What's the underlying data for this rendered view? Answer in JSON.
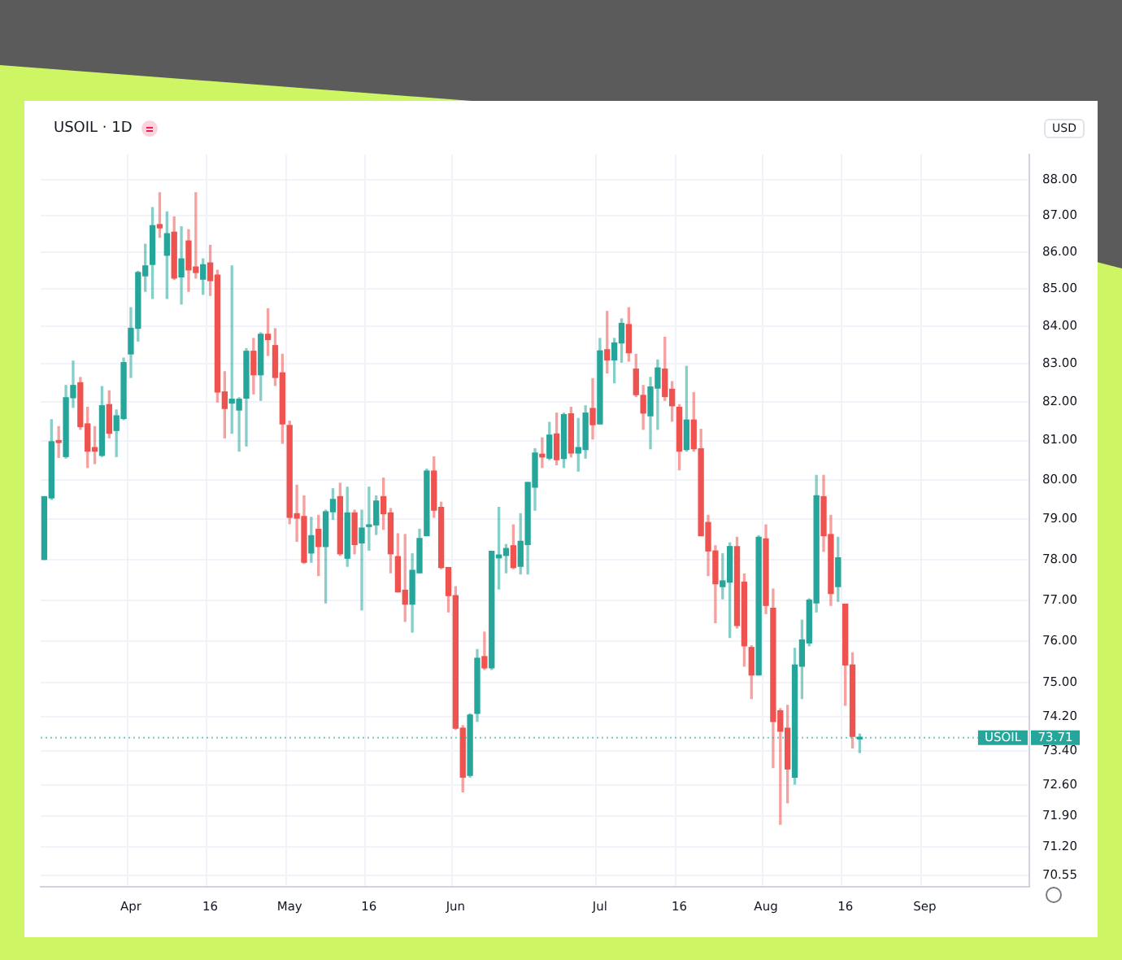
{
  "chart_data": {
    "type": "candlestick",
    "title": "USOIL · 1D",
    "annotations": [
      "USD",
      {
        "text": "73.71",
        "y": 73.71
      }
    ],
    "categories": [
      null,
      null,
      null,
      null,
      null,
      null,
      null,
      null,
      null,
      null,
      null,
      null,
      "Apr",
      null,
      null,
      null,
      null,
      null,
      null,
      null,
      null,
      null,
      null,
      "16",
      null,
      null,
      null,
      null,
      null,
      null,
      null,
      null,
      null,
      null,
      "May",
      null,
      null,
      null,
      null,
      null,
      null,
      null,
      null,
      null,
      null,
      "16",
      null,
      null,
      null,
      null,
      null,
      null,
      null,
      null,
      null,
      null,
      null,
      "Jun",
      null,
      null,
      null,
      null,
      null,
      null,
      null,
      null,
      null,
      null,
      null,
      null,
      null,
      null,
      null,
      null,
      null,
      null,
      null,
      "Jul",
      null,
      null,
      null,
      null,
      null,
      null,
      null,
      null,
      null,
      null,
      "16",
      null,
      null,
      null,
      null,
      null,
      null,
      null,
      null,
      null,
      null,
      null,
      "Aug",
      null,
      null,
      null,
      null,
      null,
      null,
      null,
      null,
      null,
      null,
      "16",
      null,
      null,
      null,
      null,
      null,
      null,
      null,
      null,
      null,
      null,
      "Sep",
      null,
      null,
      null,
      null,
      null,
      null,
      null,
      null,
      null,
      null,
      null,
      null,
      null,
      null
    ],
    "ohlc": [
      [
        78.0,
        79.57,
        78.0,
        79.57
      ],
      [
        79.54,
        81.54,
        79.5,
        80.97
      ],
      [
        81.0,
        81.36,
        80.57,
        80.95
      ],
      [
        80.59,
        82.43,
        80.55,
        82.11
      ],
      [
        82.11,
        83.07,
        81.86,
        82.43
      ],
      [
        82.5,
        82.64,
        81.29,
        81.36
      ],
      [
        81.43,
        81.86,
        80.31,
        80.73
      ],
      [
        80.82,
        81.36,
        80.41,
        80.73
      ],
      [
        80.62,
        82.4,
        80.59,
        81.9
      ],
      [
        81.93,
        82.29,
        81.07,
        81.19
      ],
      [
        81.26,
        81.79,
        80.59,
        81.64
      ],
      [
        81.57,
        83.15,
        81.54,
        83.03
      ],
      [
        83.26,
        84.49,
        82.64,
        83.94
      ],
      [
        83.94,
        85.47,
        83.6,
        85.44
      ],
      [
        85.35,
        86.21,
        84.93,
        85.62
      ],
      [
        85.66,
        87.22,
        84.74,
        86.72
      ],
      [
        86.75,
        87.63,
        86.4,
        86.66
      ],
      [
        85.91,
        87.1,
        84.74,
        86.5
      ],
      [
        86.54,
        86.96,
        85.25,
        85.29
      ],
      [
        85.32,
        86.69,
        84.59,
        85.81
      ],
      [
        86.3,
        86.61,
        84.93,
        85.51
      ],
      [
        85.59,
        87.63,
        85.29,
        85.44
      ],
      [
        85.26,
        85.81,
        84.85,
        85.65
      ],
      [
        85.7,
        86.18,
        84.82,
        85.22
      ],
      [
        85.37,
        85.5,
        82.0,
        82.26
      ],
      [
        82.26,
        82.79,
        81.07,
        81.83
      ],
      [
        81.97,
        85.62,
        81.19,
        82.07
      ],
      [
        81.79,
        82.11,
        80.73,
        82.07
      ],
      [
        82.1,
        83.4,
        80.86,
        83.33
      ],
      [
        83.33,
        83.67,
        82.21,
        82.71
      ],
      [
        82.71,
        83.82,
        82.04,
        83.78
      ],
      [
        83.78,
        84.46,
        83.22,
        83.64
      ],
      [
        83.48,
        83.93,
        82.43,
        82.64
      ],
      [
        82.76,
        83.25,
        80.93,
        81.43
      ],
      [
        81.39,
        81.5,
        78.89,
        79.05
      ],
      [
        79.14,
        79.86,
        78.45,
        79.03
      ],
      [
        79.07,
        79.59,
        77.9,
        77.93
      ],
      [
        78.16,
        79.05,
        77.93,
        78.59
      ],
      [
        78.75,
        79.1,
        77.6,
        78.32
      ],
      [
        78.32,
        79.23,
        76.93,
        79.19
      ],
      [
        79.19,
        79.77,
        79.0,
        79.5
      ],
      [
        79.57,
        79.91,
        78.1,
        78.14
      ],
      [
        78.03,
        79.81,
        77.83,
        79.16
      ],
      [
        79.16,
        79.23,
        78.14,
        78.37
      ],
      [
        78.41,
        79.23,
        76.76,
        78.78
      ],
      [
        78.82,
        79.81,
        78.23,
        78.86
      ],
      [
        78.86,
        79.59,
        78.62,
        79.46
      ],
      [
        79.57,
        80.04,
        78.75,
        79.14
      ],
      [
        79.16,
        79.27,
        77.67,
        78.14
      ],
      [
        78.07,
        78.64,
        77.2,
        77.2
      ],
      [
        77.24,
        78.62,
        76.48,
        76.9
      ],
      [
        76.9,
        78.14,
        76.22,
        77.73
      ],
      [
        77.67,
        78.75,
        77.67,
        78.52
      ],
      [
        78.59,
        80.27,
        78.59,
        80.22
      ],
      [
        80.22,
        80.58,
        79.05,
        79.23
      ],
      [
        79.3,
        79.43,
        77.77,
        77.8
      ],
      [
        77.8,
        77.8,
        76.71,
        77.11
      ],
      [
        77.11,
        77.33,
        73.9,
        73.93
      ],
      [
        73.93,
        73.99,
        72.45,
        72.79
      ],
      [
        72.83,
        74.27,
        72.79,
        74.24
      ],
      [
        74.28,
        75.8,
        74.09,
        75.59
      ],
      [
        75.63,
        76.22,
        75.32,
        75.36
      ],
      [
        75.36,
        78.2,
        75.32,
        78.2
      ],
      [
        78.04,
        79.3,
        77.27,
        78.11
      ],
      [
        78.1,
        78.37,
        77.67,
        78.27
      ],
      [
        78.34,
        78.86,
        77.77,
        77.8
      ],
      [
        77.83,
        79.14,
        77.64,
        78.45
      ],
      [
        78.37,
        79.93,
        77.64,
        79.93
      ],
      [
        79.81,
        80.79,
        79.23,
        80.68
      ],
      [
        80.65,
        81.07,
        80.31,
        80.58
      ],
      [
        80.55,
        81.47,
        80.51,
        81.14
      ],
      [
        81.17,
        81.71,
        80.38,
        80.51
      ],
      [
        80.54,
        81.71,
        80.31,
        81.67
      ],
      [
        81.69,
        81.86,
        80.58,
        80.68
      ],
      [
        80.68,
        81.57,
        80.22,
        80.82
      ],
      [
        80.77,
        81.9,
        80.55,
        81.71
      ],
      [
        81.83,
        82.61,
        81.04,
        81.41
      ],
      [
        81.43,
        83.67,
        81.43,
        83.34
      ],
      [
        83.37,
        84.39,
        82.76,
        83.1
      ],
      [
        83.1,
        83.67,
        82.5,
        83.55
      ],
      [
        83.55,
        84.19,
        83.04,
        84.07
      ],
      [
        84.04,
        84.49,
        83.07,
        83.29
      ],
      [
        82.86,
        83.25,
        82.14,
        82.19
      ],
      [
        82.17,
        82.43,
        81.29,
        81.71
      ],
      [
        81.64,
        82.64,
        80.79,
        82.39
      ],
      [
        82.36,
        83.1,
        81.29,
        82.89
      ],
      [
        82.86,
        83.7,
        82.04,
        82.14
      ],
      [
        82.33,
        82.53,
        81.5,
        81.9
      ],
      [
        81.86,
        81.93,
        80.25,
        80.73
      ],
      [
        80.77,
        82.93,
        80.73,
        81.53
      ],
      [
        81.53,
        82.24,
        80.73,
        80.79
      ],
      [
        80.79,
        81.29,
        78.59,
        78.59
      ],
      [
        78.92,
        79.1,
        77.6,
        78.21
      ],
      [
        78.21,
        78.34,
        76.45,
        77.4
      ],
      [
        77.33,
        78.14,
        77.03,
        77.47
      ],
      [
        77.44,
        78.41,
        76.09,
        78.32
      ],
      [
        78.32,
        78.55,
        76.32,
        76.38
      ],
      [
        77.44,
        77.64,
        75.4,
        75.89
      ],
      [
        75.85,
        75.89,
        74.63,
        75.19
      ],
      [
        75.19,
        78.59,
        75.19,
        78.55
      ],
      [
        78.51,
        78.86,
        76.67,
        76.87
      ],
      [
        76.8,
        77.27,
        73.01,
        74.09
      ],
      [
        74.34,
        74.39,
        71.71,
        73.86
      ],
      [
        73.93,
        74.47,
        72.2,
        72.98
      ],
      [
        72.79,
        75.83,
        72.63,
        75.43
      ],
      [
        75.4,
        76.51,
        74.63,
        76.03
      ],
      [
        75.96,
        77.03,
        75.89,
        77.0
      ],
      [
        76.93,
        80.11,
        76.71,
        79.59
      ],
      [
        79.57,
        80.11,
        78.2,
        78.59
      ],
      [
        78.62,
        79.1,
        76.87,
        77.16
      ],
      [
        77.33,
        78.55,
        76.97,
        78.04
      ],
      [
        76.9,
        76.9,
        74.47,
        75.43
      ],
      [
        75.43,
        75.72,
        73.47,
        73.74
      ],
      [
        73.68,
        73.79,
        73.36,
        73.71
      ],
      null,
      null,
      null,
      null,
      null,
      null,
      null,
      null,
      null,
      null,
      null,
      null,
      null,
      null,
      null,
      null,
      null,
      null,
      null,
      null,
      null,
      null,
      null
    ],
    "colors": [
      "#26a69a",
      "#26a69a",
      "#ef5350",
      "#26a69a",
      "#26a69a",
      "#ef5350",
      "#ef5350",
      "#ef5350",
      "#26a69a",
      "#ef5350",
      "#26a69a",
      "#26a69a",
      "#26a69a",
      "#26a69a",
      "#26a69a",
      "#26a69a",
      "#ef5350",
      "#26a69a",
      "#ef5350",
      "#26a69a",
      "#ef5350",
      "#ef5350",
      "#26a69a",
      "#ef5350",
      "#ef5350",
      "#ef5350",
      "#26a69a",
      "#26a69a",
      "#26a69a",
      "#ef5350",
      "#26a69a",
      "#ef5350",
      "#ef5350",
      "#ef5350",
      "#ef5350",
      "#ef5350",
      "#ef5350",
      "#26a69a",
      "#ef5350",
      "#26a69a",
      "#26a69a",
      "#ef5350",
      "#26a69a",
      "#ef5350",
      "#26a69a",
      "#26a69a",
      "#26a69a",
      "#ef5350",
      "#ef5350",
      "#ef5350",
      "#ef5350",
      "#26a69a",
      "#26a69a",
      "#26a69a",
      "#ef5350",
      "#ef5350",
      "#ef5350",
      "#ef5350",
      "#ef5350",
      "#26a69a",
      "#26a69a",
      "#ef5350",
      "#26a69a",
      "#26a69a",
      "#26a69a",
      "#ef5350",
      "#26a69a",
      "#26a69a",
      "#26a69a",
      "#ef5350",
      "#26a69a",
      "#ef5350",
      "#26a69a",
      "#ef5350",
      "#26a69a",
      "#26a69a",
      "#ef5350",
      "#26a69a",
      "#ef5350",
      "#26a69a",
      "#26a69a",
      "#ef5350",
      "#ef5350",
      "#ef5350",
      "#26a69a",
      "#26a69a",
      "#ef5350",
      "#ef5350",
      "#ef5350",
      "#26a69a",
      "#ef5350",
      "#ef5350",
      "#ef5350",
      "#ef5350",
      "#26a69a",
      "#26a69a",
      "#ef5350",
      "#ef5350",
      "#ef5350",
      "#26a69a",
      "#ef5350",
      "#ef5350",
      "#ef5350",
      "#ef5350",
      "#26a69a",
      "#26a69a",
      "#26a69a",
      "#26a69a",
      "#ef5350",
      "#ef5350",
      "#26a69a",
      "#ef5350",
      "#ef5350",
      "#26a69a",
      null,
      null,
      null,
      null,
      null,
      null,
      null,
      null,
      null,
      null,
      null,
      null,
      null,
      null,
      null,
      null,
      null,
      null,
      null,
      null,
      null,
      null,
      null
    ],
    "log": true,
    "ylim": [
      70.3,
      88.7
    ],
    "yticks": [
      {
        "value": 88,
        "label": "88.00"
      },
      {
        "value": 87,
        "label": "87.00"
      },
      {
        "value": 86,
        "label": "86.00"
      },
      {
        "value": 85,
        "label": "85.00"
      },
      {
        "value": 84,
        "label": "84.00"
      },
      {
        "value": 83,
        "label": "83.00"
      },
      {
        "value": 82,
        "label": "82.00"
      },
      {
        "value": 81,
        "label": "81.00"
      },
      {
        "value": 80,
        "label": "80.00"
      },
      {
        "value": 79,
        "label": "79.00"
      },
      {
        "value": 78,
        "label": "78.00"
      },
      {
        "value": 77,
        "label": "77.00"
      },
      {
        "value": 76,
        "label": "76.00"
      },
      {
        "value": 75,
        "label": "75.00"
      },
      {
        "value": 74.2,
        "label": "74.20"
      },
      {
        "value": 73.4,
        "label": "73.40"
      },
      {
        "value": 72.6,
        "label": "72.60"
      },
      {
        "value": 71.9,
        "label": "71.90"
      },
      {
        "value": 71.2,
        "label": "71.20"
      },
      {
        "value": 70.55,
        "label": "70.55"
      }
    ],
    "ref_lines": [
      {
        "axis": "y",
        "value": 73.71,
        "label": "USOIL",
        "color": "#26a69a"
      }
    ],
    "grid": true,
    "legend": false
  }
}
